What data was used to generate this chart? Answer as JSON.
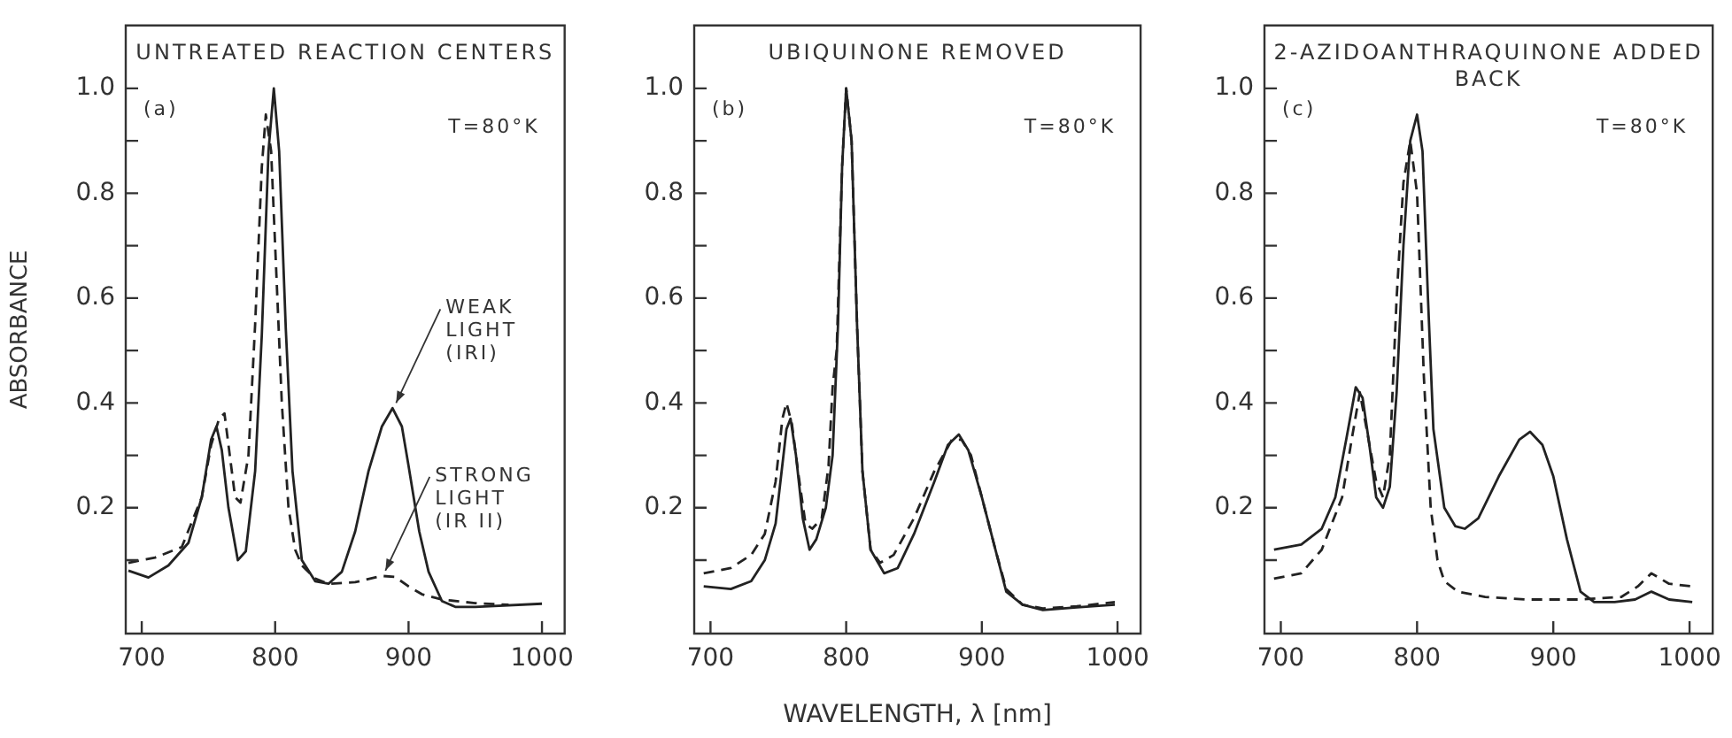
{
  "chart_data": [
    {
      "type": "line",
      "title": "UNTREATED REACTION CENTERS",
      "ylabel": "ABSORBANCE",
      "xlim": [
        688,
        1017
      ],
      "ylim": [
        -0.04,
        1.12
      ],
      "xticks": [
        700,
        800,
        900,
        1000
      ],
      "yticks": [
        {
          "value": 0.1,
          "label": null
        },
        0.2,
        {
          "value": 0.3,
          "label": null
        },
        0.4,
        {
          "value": 0.5,
          "label": null
        },
        0.6,
        {
          "value": 0.7,
          "label": null
        },
        0.8,
        {
          "value": 0.9,
          "label": null
        },
        {
          "value": 1,
          "label": "1.0"
        }
      ],
      "grid": false,
      "legend": false,
      "marker": "none",
      "annotations": [
        "(a)",
        "T=80°K",
        {
          "text": "WEAK LIGHT (IRI)",
          "x": 888,
          "y": 0.39
        },
        {
          "text": "STRONG LIGHT (IR II)",
          "x": 880,
          "y": 0.07
        }
      ],
      "series": [
        {
          "color": "#222222",
          "line_style": "solid",
          "x": [
            690,
            705,
            720,
            735,
            745,
            752,
            756,
            760,
            765,
            772,
            778,
            785,
            790,
            795,
            799,
            803,
            808,
            813,
            820,
            830,
            840,
            850,
            860,
            870,
            880,
            888,
            895,
            900,
            908,
            915,
            925,
            935,
            950,
            1000
          ],
          "values": [
            0.08,
            0.067,
            0.09,
            0.133,
            0.22,
            0.33,
            0.355,
            0.31,
            0.2,
            0.1,
            0.117,
            0.27,
            0.53,
            0.88,
            1.0,
            0.88,
            0.54,
            0.27,
            0.1,
            0.06,
            0.055,
            0.078,
            0.155,
            0.27,
            0.355,
            0.39,
            0.355,
            0.28,
            0.155,
            0.078,
            0.022,
            0.011,
            0.011,
            0.017
          ]
        },
        {
          "color": "#222222",
          "line_style": "dashed",
          "x": [
            690,
            710,
            730,
            745,
            752,
            758,
            762,
            766,
            770,
            774,
            780,
            785,
            790,
            793,
            797,
            800,
            805,
            810,
            815,
            820,
            830,
            840,
            860,
            880,
            890,
            900,
            910,
            925,
            950,
            975
          ],
          "values": [
            0.095,
            0.105,
            0.125,
            0.22,
            0.32,
            0.37,
            0.38,
            0.3,
            0.22,
            0.21,
            0.3,
            0.55,
            0.85,
            0.95,
            0.88,
            0.7,
            0.4,
            0.2,
            0.12,
            0.09,
            0.065,
            0.055,
            0.058,
            0.07,
            0.068,
            0.05,
            0.035,
            0.025,
            0.018,
            0.015
          ]
        }
      ]
    },
    {
      "type": "line",
      "title": "UBIQUINONE REMOVED",
      "xlabel": "WAVELENGTH, λ [nm]",
      "xlim": [
        688,
        1017
      ],
      "ylim": [
        -0.04,
        1.12
      ],
      "xticks": [
        700,
        800,
        900,
        1000
      ],
      "yticks": [
        {
          "value": 0.1,
          "label": null
        },
        0.2,
        {
          "value": 0.3,
          "label": null
        },
        0.4,
        {
          "value": 0.5,
          "label": null
        },
        0.6,
        {
          "value": 0.7,
          "label": null
        },
        0.8,
        {
          "value": 0.9,
          "label": null
        },
        {
          "value": 1,
          "label": "1.0"
        }
      ],
      "grid": false,
      "legend": false,
      "marker": "none",
      "annotations": [
        "(b)",
        "T=80°K"
      ],
      "series": [
        {
          "color": "#222222",
          "line_style": "solid",
          "x": [
            695,
            715,
            730,
            740,
            748,
            752,
            756,
            759,
            763,
            768,
            773,
            778,
            785,
            790,
            794,
            797,
            800,
            804,
            808,
            812,
            818,
            828,
            838,
            850,
            865,
            875,
            883,
            890,
            900,
            910,
            918,
            930,
            945,
            970,
            998
          ],
          "values": [
            0.05,
            0.045,
            0.06,
            0.1,
            0.17,
            0.26,
            0.35,
            0.37,
            0.3,
            0.18,
            0.12,
            0.14,
            0.2,
            0.3,
            0.55,
            0.85,
            1.0,
            0.9,
            0.55,
            0.27,
            0.12,
            0.075,
            0.085,
            0.15,
            0.25,
            0.32,
            0.34,
            0.31,
            0.22,
            0.12,
            0.04,
            0.015,
            0.005,
            0.01,
            0.015
          ]
        },
        {
          "color": "#222222",
          "line_style": "dashed",
          "x": [
            695,
            715,
            730,
            740,
            748,
            753,
            756,
            760,
            765,
            770,
            775,
            782,
            787,
            790,
            793,
            797,
            800,
            804,
            808,
            812,
            818,
            825,
            835,
            850,
            865,
            878,
            885,
            892,
            900,
            910,
            918,
            930,
            945,
            970,
            998
          ],
          "values": [
            0.075,
            0.085,
            0.11,
            0.15,
            0.25,
            0.37,
            0.4,
            0.36,
            0.26,
            0.17,
            0.16,
            0.18,
            0.28,
            0.43,
            0.5,
            0.85,
            1.0,
            0.9,
            0.55,
            0.27,
            0.12,
            0.095,
            0.11,
            0.18,
            0.27,
            0.33,
            0.33,
            0.3,
            0.22,
            0.12,
            0.045,
            0.015,
            0.008,
            0.012,
            0.02
          ]
        }
      ]
    },
    {
      "type": "line",
      "title": "2-AZIDOANTHRAQUINONE ADDED BACK",
      "xlim": [
        688,
        1017
      ],
      "ylim": [
        -0.04,
        1.12
      ],
      "xticks": [
        700,
        800,
        900,
        1000
      ],
      "yticks": [
        {
          "value": 0.1,
          "label": null
        },
        0.2,
        {
          "value": 0.3,
          "label": null
        },
        0.4,
        {
          "value": 0.5,
          "label": null
        },
        0.6,
        {
          "value": 0.7,
          "label": null
        },
        0.8,
        {
          "value": 0.9,
          "label": null
        },
        {
          "value": 1,
          "label": "1.0"
        }
      ],
      "grid": false,
      "legend": false,
      "marker": "none",
      "annotations": [
        "(c)",
        "T=80°K"
      ],
      "series": [
        {
          "color": "#222222",
          "line_style": "solid",
          "x": [
            695,
            715,
            730,
            740,
            748,
            755,
            760,
            765,
            770,
            775,
            780,
            785,
            790,
            795,
            800,
            804,
            808,
            812,
            820,
            828,
            835,
            845,
            860,
            875,
            883,
            892,
            900,
            910,
            920,
            930,
            945,
            960,
            972,
            985,
            1002
          ],
          "values": [
            0.12,
            0.13,
            0.16,
            0.22,
            0.33,
            0.43,
            0.41,
            0.32,
            0.22,
            0.2,
            0.24,
            0.42,
            0.7,
            0.9,
            0.95,
            0.88,
            0.6,
            0.35,
            0.2,
            0.165,
            0.16,
            0.18,
            0.26,
            0.33,
            0.345,
            0.32,
            0.26,
            0.14,
            0.04,
            0.02,
            0.02,
            0.025,
            0.04,
            0.025,
            0.02
          ]
        },
        {
          "color": "#222222",
          "line_style": "dashed",
          "x": [
            695,
            715,
            730,
            745,
            752,
            758,
            763,
            770,
            775,
            780,
            785,
            790,
            795,
            800,
            805,
            810,
            815,
            820,
            830,
            850,
            880,
            920,
            950,
            962,
            972,
            985,
            1002
          ],
          "values": [
            0.065,
            0.075,
            0.12,
            0.22,
            0.33,
            0.42,
            0.35,
            0.25,
            0.22,
            0.3,
            0.6,
            0.82,
            0.9,
            0.8,
            0.45,
            0.2,
            0.1,
            0.06,
            0.04,
            0.03,
            0.025,
            0.025,
            0.03,
            0.05,
            0.075,
            0.055,
            0.05
          ]
        }
      ]
    }
  ]
}
